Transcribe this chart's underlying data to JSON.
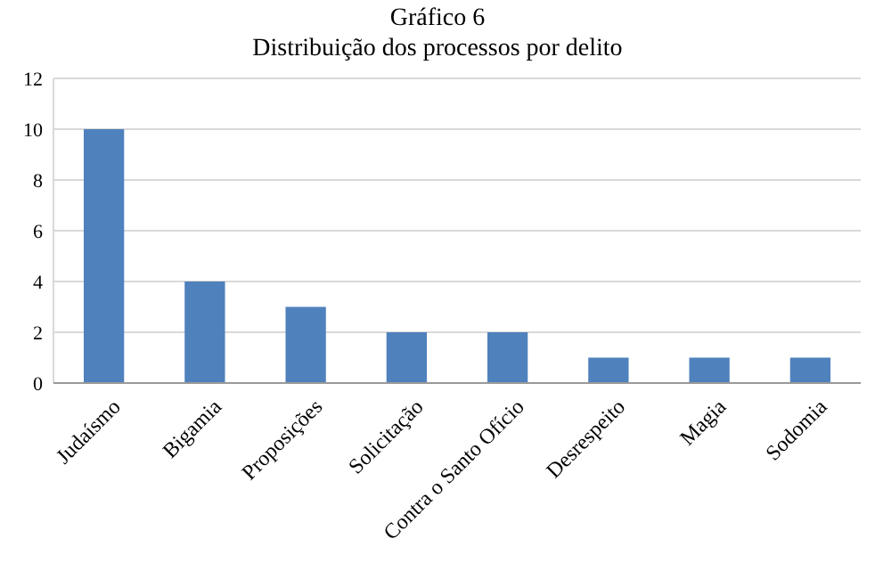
{
  "chart_data": {
    "type": "bar",
    "title": "Gráfico 6",
    "subtitle": "Distribuição dos processos por delito",
    "categories": [
      "Judaísmo",
      "Bigamia",
      "Proposições",
      "Solicitação",
      "Contra o Santo Ofício",
      "Desrespeito",
      "Magia",
      "Sodomia"
    ],
    "values": [
      10,
      4,
      3,
      2,
      2,
      1,
      1,
      1
    ],
    "color": "#4f81bd",
    "ylim": [
      0,
      12
    ],
    "yticks": [
      0,
      2,
      4,
      6,
      8,
      10,
      12
    ],
    "grid": "y"
  }
}
